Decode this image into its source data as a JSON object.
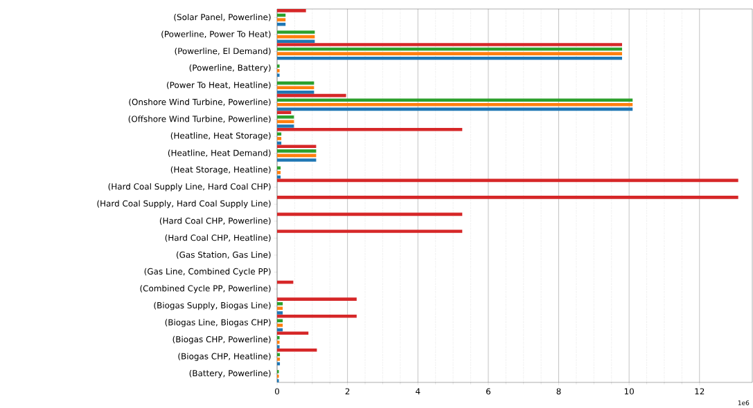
{
  "chart_data": {
    "type": "bar",
    "orientation": "horizontal",
    "categories": [
      "(Solar Panel, Powerline)",
      "(Powerline, Power To Heat)",
      "(Powerline, El Demand)",
      "(Powerline, Battery)",
      "(Power To Heat, Heatline)",
      "(Onshore Wind Turbine, Powerline)",
      "(Offshore Wind Turbine, Powerline)",
      "(Heatline, Heat Storage)",
      "(Heatline, Heat Demand)",
      "(Heat Storage, Heatline)",
      "(Hard Coal Supply Line, Hard Coal CHP)",
      "(Hard Coal Supply, Hard Coal Supply Line)",
      "(Hard Coal CHP, Powerline)",
      "(Hard Coal CHP, Heatline)",
      "(Gas Station, Gas Line)",
      "(Gas Line, Combined Cycle PP)",
      "(Combined Cycle PP, Powerline)",
      "(Biogas Supply, Biogas Line)",
      "(Biogas Line, Biogas CHP)",
      "(Biogas CHP, Powerline)",
      "(Biogas CHP, Heatline)",
      "(Battery, Powerline)"
    ],
    "series": [
      {
        "color": "#1f77b4",
        "values": [
          0.24,
          1.07,
          9.8,
          0.07,
          1.05,
          10.1,
          0.48,
          0.12,
          1.11,
          0.1,
          0,
          0,
          0,
          0,
          0,
          0,
          0,
          0.16,
          0.16,
          0.07,
          0.08,
          0.05
        ]
      },
      {
        "color": "#ff7f0e",
        "values": [
          0.24,
          1.07,
          9.8,
          0.07,
          1.05,
          10.1,
          0.48,
          0.12,
          1.11,
          0.1,
          0,
          0,
          0,
          0,
          0,
          0,
          0,
          0.16,
          0.16,
          0.07,
          0.08,
          0.05
        ]
      },
      {
        "color": "#2ca02c",
        "values": [
          0.24,
          1.07,
          9.8,
          0.07,
          1.05,
          10.1,
          0.48,
          0.12,
          1.11,
          0.1,
          0,
          0,
          0,
          0,
          0,
          0,
          0,
          0.16,
          0.16,
          0.07,
          0.08,
          0.05
        ]
      },
      {
        "color": "#d62728",
        "values": [
          0.82,
          0,
          9.8,
          0,
          0,
          1.96,
          0.4,
          5.26,
          1.11,
          0,
          13.1,
          13.1,
          5.26,
          5.26,
          0,
          0,
          0.46,
          2.26,
          2.26,
          0.89,
          1.13,
          0
        ]
      }
    ],
    "xlim": [
      0,
      13.5
    ],
    "xticks": [
      0,
      2,
      4,
      6,
      8,
      10,
      12
    ],
    "grid": "x",
    "annotations": [
      "1e6"
    ]
  }
}
